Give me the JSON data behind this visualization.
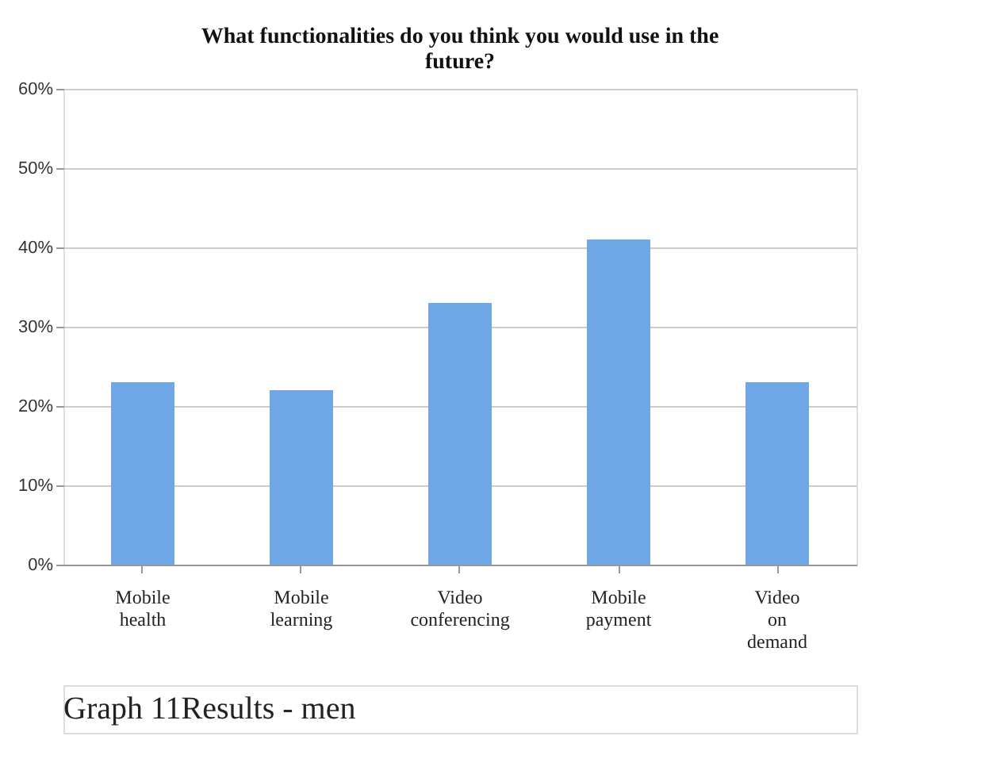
{
  "chart_data": {
    "type": "bar",
    "title": "What functionalities do you think you would use in the future?",
    "categories": [
      "Mobile health",
      "Mobile learning",
      "Video conferencing",
      "Mobile payment",
      "Video on demand"
    ],
    "values": [
      23,
      22,
      33,
      41,
      23
    ],
    "color": "#6fa6e6",
    "ylim": [
      0,
      60
    ],
    "yticks": [
      {
        "value": 0,
        "label": "0%"
      },
      {
        "value": 10,
        "label": "10%"
      },
      {
        "value": 20,
        "label": "20%"
      },
      {
        "value": 30,
        "label": "30%"
      },
      {
        "value": 40,
        "label": "40%"
      },
      {
        "value": 50,
        "label": "50%"
      },
      {
        "value": 60,
        "label": "60%"
      }
    ],
    "grid": "y",
    "annotations": [
      "Graph 11Results - men"
    ]
  }
}
